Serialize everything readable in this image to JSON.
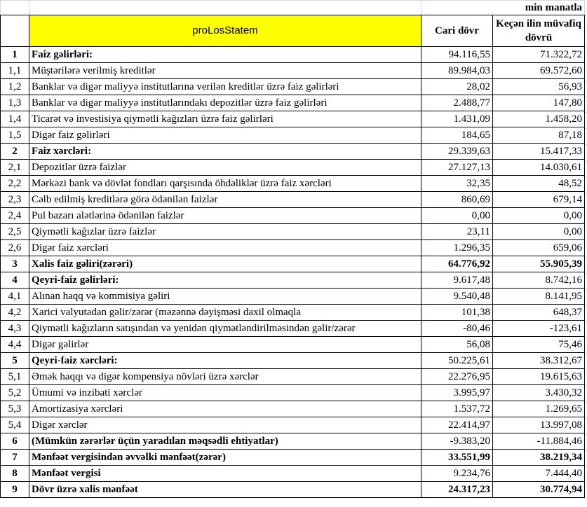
{
  "unit_label": "min manatla",
  "header": {
    "title": "proLosStatem",
    "col_current": "Cari dövr",
    "col_previous": "Keçən ilin müvafiq dövrü"
  },
  "rows": [
    {
      "no": "1",
      "label": "Faiz gəlirləri:",
      "current": "94.116,55",
      "previous": "71.322,72",
      "bold_label": true,
      "bold_values": false
    },
    {
      "no": "1,1",
      "label": "Müştərilərə verilmiş kreditlər",
      "current": "89.984,03",
      "previous": "69.572,60"
    },
    {
      "no": "1,2",
      "label": "Banklar və digər maliyyə institutlarına verilən kreditlər üzrə faiz gəlirləri",
      "current": "28,02",
      "previous": "56,93"
    },
    {
      "no": "1,3",
      "label": "Banklar və digər maliyyə institutlarındakı depozitlər üzrə faiz gəlirləri",
      "current": "2.488,77",
      "previous": "147,80"
    },
    {
      "no": "1,4",
      "label": "Ticarət və investisiya qiymətli kağızları üzrə faiz gəlirləri",
      "current": "1.431,09",
      "previous": "1.458,20"
    },
    {
      "no": "1,5",
      "label": "Digər faiz gəlirləri",
      "current": "184,65",
      "previous": "87,18"
    },
    {
      "no": "2",
      "label": "Faiz xərcləri:",
      "current": "29.339,63",
      "previous": "15.417,33",
      "bold_label": true
    },
    {
      "no": "2,1",
      "label": "Depozitlər üzrə faizlər",
      "current": "27.127,13",
      "previous": "14.030,61"
    },
    {
      "no": "2,2",
      "label": "Mərkəzi bank və dövlət fondları qarşısında öhdəliklər üzrə faiz xərcləri",
      "current": "32,35",
      "previous": "48,52"
    },
    {
      "no": "2,3",
      "label": "Cəlb edilmiş kreditlərə görə ödənilən faizlər",
      "current": "860,69",
      "previous": "679,14"
    },
    {
      "no": "2,4",
      "label": "Pul bazarı alətlərinə ödənilən faizlər",
      "current": "0,00",
      "previous": "0,00"
    },
    {
      "no": "2,5",
      "label": "Qiymətli kağızlar üzrə faizlər",
      "current": "23,11",
      "previous": "0,00"
    },
    {
      "no": "2,6",
      "label": "Digər faiz xərcləri",
      "current": "1.296,35",
      "previous": "659,06"
    },
    {
      "no": "3",
      "label": "Xalis faiz gəliri(zərəri)",
      "current": "64.776,92",
      "previous": "55.905,39",
      "bold_label": true,
      "bold_values": true
    },
    {
      "no": "4",
      "label": "Qeyri-faiz gəlirləri:",
      "current": "9.617,48",
      "previous": "8.742,16",
      "bold_label": true
    },
    {
      "no": "4,1",
      "label": "Alınan haqq və kommisiya gəliri",
      "current": "9.540,48",
      "previous": "8.141,95"
    },
    {
      "no": "4,2",
      "label": "Xarici valyutadan gəlir/zərər (məzənnə dəyişməsi daxil olmaqla",
      "current": "101,38",
      "previous": "648,37"
    },
    {
      "no": "4,3",
      "label": "Qiymətli kağızların satışından və yenidən qiymətləndirilməsindən gəlir/zərər",
      "current": "-80,46",
      "previous": "-123,61"
    },
    {
      "no": "4,4",
      "label": "Digər gəlirlər",
      "current": "56,08",
      "previous": "75,46"
    },
    {
      "no": "5",
      "label": "Qeyri-faiz xərcləri:",
      "current": "50.225,61",
      "previous": "38.312,67",
      "bold_label": true
    },
    {
      "no": "5,1",
      "label": "Əmək haqqı və digər kompensiya növləri üzrə xərclər",
      "current": "22.276,95",
      "previous": "19.615,63"
    },
    {
      "no": "5,2",
      "label": "Ümumi və inzibati xərclər",
      "current": "3.995,97",
      "previous": "3.430,32"
    },
    {
      "no": "5,3",
      "label": "Amortizasiya xərcləri",
      "current": "1.537,72",
      "previous": "1.269,65"
    },
    {
      "no": "5,4",
      "label": "Digər xərclər",
      "current": "22.414,97",
      "previous": "13.997,08"
    },
    {
      "no": "6",
      "label": "(Mümkün zərərlər üçün yaradılan məqsədli ehtiyatlar)",
      "current": "-9.383,20",
      "previous": "-11.884,46",
      "bold_label": true
    },
    {
      "no": "7",
      "label": "Mənfəət vergisindən əvvəlki mənfəət(zərər)",
      "current": "33.551,99",
      "previous": "38.219,34",
      "bold_label": true,
      "bold_values": true
    },
    {
      "no": "8",
      "label": "Mənfəət vergisi",
      "current": "9.234,76",
      "previous": "7.444,40",
      "bold_label": true
    },
    {
      "no": "9",
      "label": "Dövr üzrə xalis mənfəət",
      "current": "24.317,23",
      "previous": "30.774,94",
      "bold_label": true,
      "bold_values": true
    }
  ]
}
